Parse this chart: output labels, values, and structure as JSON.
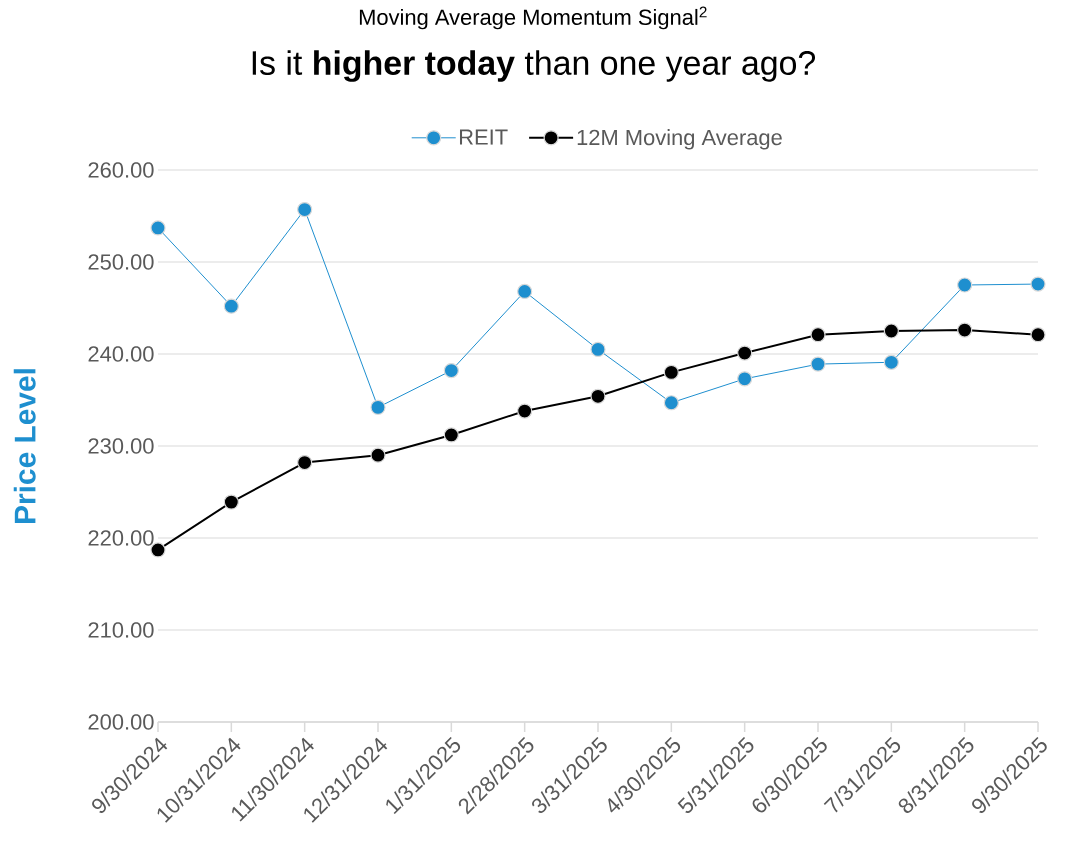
{
  "chart_data": {
    "type": "line",
    "title": "Moving Average Momentum Signal$^{2}$",
    "subtitle": "Is it **higher today** than one year ago?",
    "ylabel": "Price Level",
    "categories": [
      "9/30/2024",
      "10/31/2024",
      "11/30/2024",
      "12/31/2024",
      "1/31/2025",
      "2/28/2025",
      "3/31/2025",
      "4/30/2025",
      "5/31/2025",
      "6/30/2025",
      "7/31/2025",
      "8/31/2025",
      "9/30/2025"
    ],
    "series": [
      {
        "name": "REIT",
        "color": "#1e8fcf",
        "values": [
          253.7,
          245.2,
          255.7,
          234.2,
          238.2,
          246.8,
          240.5,
          234.7,
          237.3,
          238.9,
          239.1,
          247.5,
          247.6
        ]
      },
      {
        "name": "12M Moving Average",
        "color": "#000000",
        "values": [
          218.7,
          223.9,
          228.2,
          229.0,
          231.2,
          233.8,
          235.4,
          238.0,
          240.1,
          242.1,
          242.5,
          242.6,
          242.1
        ]
      }
    ],
    "ylim": [
      200,
      260
    ],
    "yticks": [
      {
        "value": 200,
        "label": "200.00"
      },
      {
        "value": 210,
        "label": "210.00"
      },
      {
        "value": 220,
        "label": "220.00"
      },
      {
        "value": 230,
        "label": "230.00"
      },
      {
        "value": 240,
        "label": "240.00"
      },
      {
        "value": 250,
        "label": "250.00"
      },
      {
        "value": 260,
        "label": "260.00"
      }
    ],
    "grid": "y",
    "legend": "top",
    "marker": "circle",
    "line_style": "solid"
  }
}
